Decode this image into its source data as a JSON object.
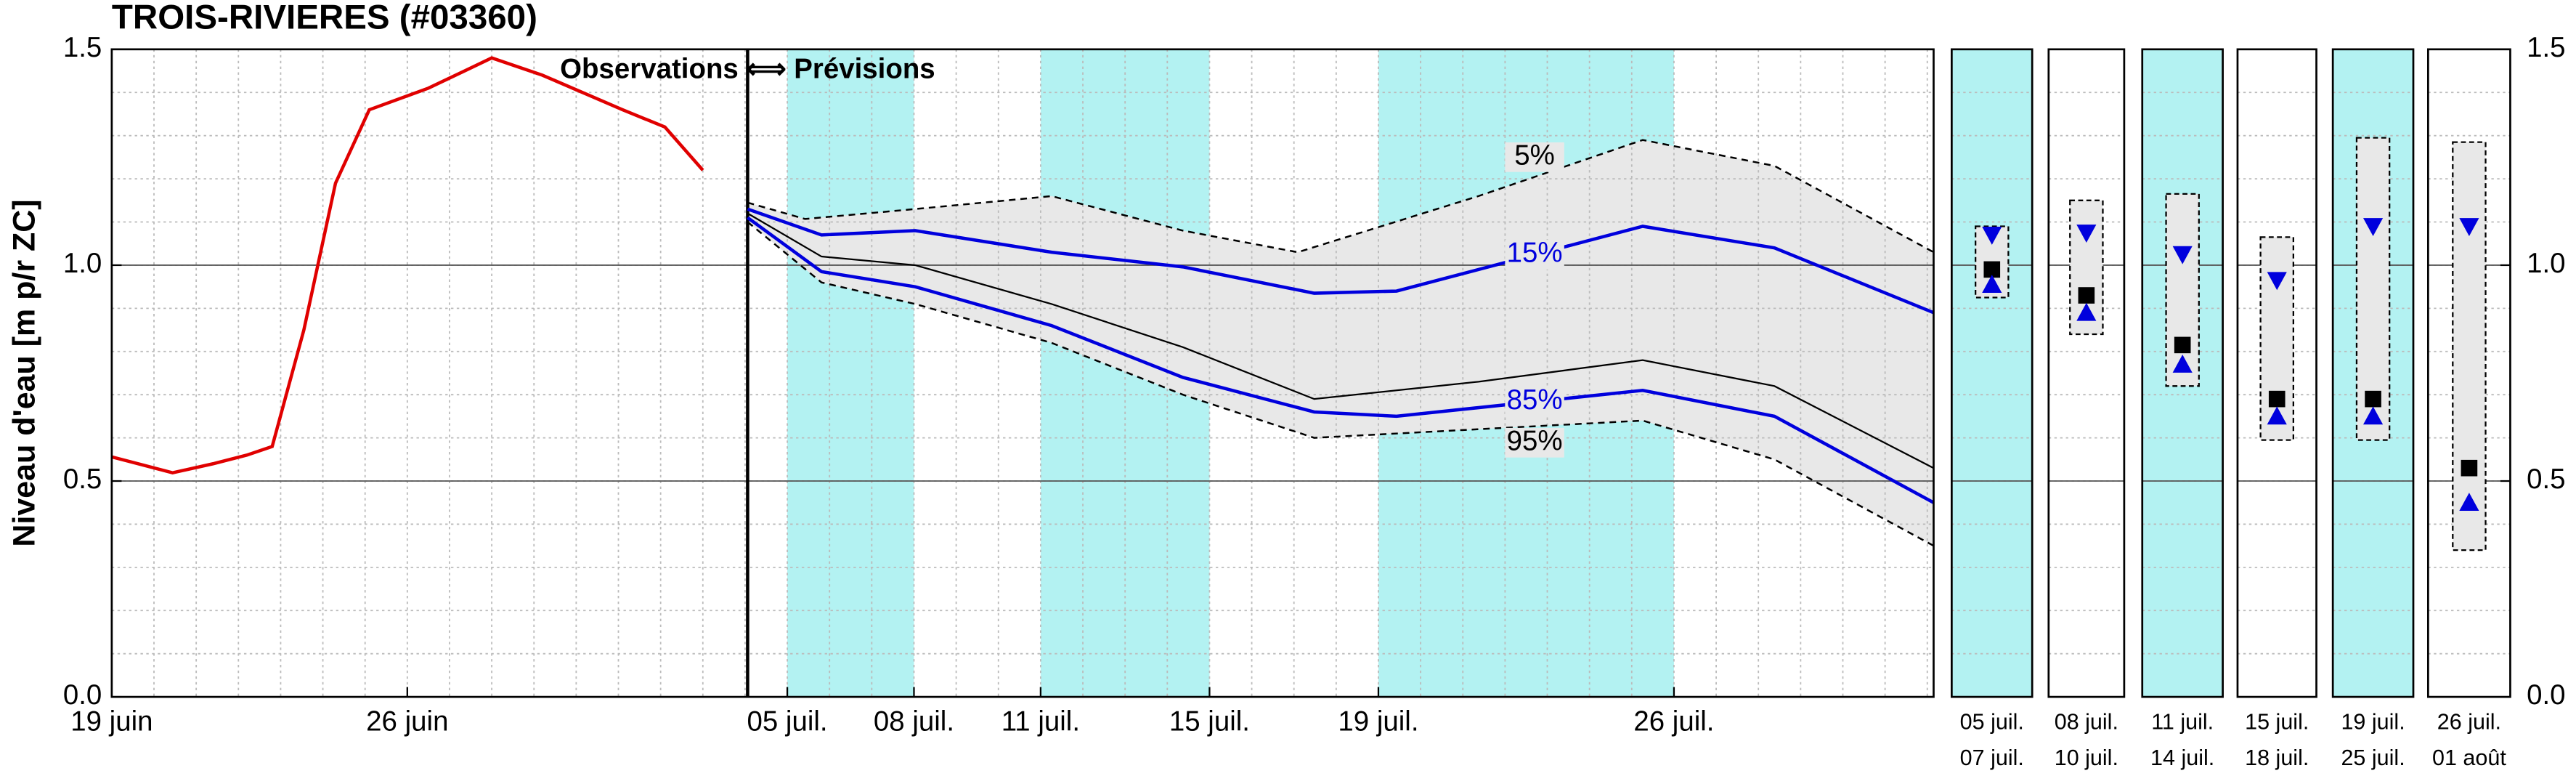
{
  "chart_data": [
    {
      "type": "line",
      "title": "TROIS-RIVIERES (#03360)",
      "ylabel": "Niveau d'eau [m p/r ZC]",
      "annotation": "Observations ⟺ Prévisions",
      "xlim": [
        0,
        43.15
      ],
      "xticks": [
        {
          "value": 0,
          "label": "19 juin"
        },
        {
          "value": 7,
          "label": "26 juin"
        },
        {
          "value": 16,
          "label": "05 juil."
        },
        {
          "value": 19,
          "label": "08 juil."
        },
        {
          "value": 22,
          "label": "11 juil."
        },
        {
          "value": 26,
          "label": "15 juil."
        },
        {
          "value": 30,
          "label": "19 juil."
        },
        {
          "value": 37,
          "label": "26 juil."
        }
      ],
      "ylim": [
        0,
        1.5
      ],
      "yticks": [
        {
          "value": 0,
          "label": "0.0"
        },
        0.5,
        {
          "value": 1,
          "label": "1.0"
        },
        1.5
      ],
      "grid": true,
      "minor_xstep": 1,
      "minor_ystep": 0.1,
      "forecast_start": 15.06,
      "shaded_periods": [
        [
          16,
          19
        ],
        [
          22,
          26
        ],
        [
          30,
          37
        ]
      ],
      "shade_color": "#b3f2f2",
      "band_color": "#e8e8e8",
      "series": [
        {
          "color": "#e00000",
          "x": [
            0,
            1.44,
            2.4,
            3.2,
            3.8,
            4.55,
            5.3,
            6.1,
            7.5,
            9.0,
            10.2,
            12.1,
            13.1,
            14.0
          ],
          "values": [
            0.556,
            0.519,
            0.54,
            0.56,
            0.58,
            0.85,
            1.19,
            1.36,
            1.41,
            1.48,
            1.44,
            1.36,
            1.32,
            1.22
          ]
        },
        {
          "name": "5%",
          "color": "#000000",
          "dashed": true,
          "x": [
            15.06,
            16.42,
            19.03,
            22.26,
            25.37,
            28.09,
            32.37,
            36.26,
            39.38,
            43.15
          ],
          "values": [
            1.145,
            1.107,
            1.13,
            1.16,
            1.08,
            1.03,
            1.16,
            1.29,
            1.23,
            1.03
          ]
        },
        {
          "name": "15%",
          "color": "#0000dd",
          "x": [
            15.06,
            16.81,
            19.03,
            22.26,
            25.37,
            28.48,
            30.43,
            36.26,
            39.38,
            43.15
          ],
          "values": [
            1.13,
            1.07,
            1.08,
            1.03,
            0.996,
            0.935,
            0.94,
            1.09,
            1.04,
            0.89
          ]
        },
        {
          "color": "#000000",
          "x": [
            15.06,
            16.81,
            19.03,
            22.26,
            25.37,
            28.48,
            32.37,
            36.26,
            39.38,
            43.15
          ],
          "values": [
            1.12,
            1.02,
            1.0,
            0.91,
            0.81,
            0.69,
            0.73,
            0.78,
            0.72,
            0.53
          ]
        },
        {
          "name": "85%",
          "color": "#0000dd",
          "x": [
            15.06,
            16.81,
            19.03,
            22.26,
            25.37,
            28.48,
            30.43,
            36.26,
            39.38,
            43.15
          ],
          "values": [
            1.11,
            0.985,
            0.95,
            0.86,
            0.74,
            0.66,
            0.65,
            0.71,
            0.65,
            0.45
          ]
        },
        {
          "name": "95%",
          "color": "#000000",
          "dashed": true,
          "x": [
            15.06,
            16.81,
            19.03,
            22.26,
            25.37,
            28.48,
            36.26,
            39.38,
            43.15
          ],
          "values": [
            1.1,
            0.96,
            0.91,
            0.82,
            0.7,
            0.6,
            0.64,
            0.55,
            0.35
          ]
        }
      ]
    },
    {
      "type": "range",
      "categories": [
        [
          "05 juil.",
          "07 juil."
        ],
        [
          "08 juil.",
          "10 juil."
        ],
        [
          "11 juil.",
          "14 juil."
        ],
        [
          "15 juil.",
          "18 juil."
        ],
        [
          "19 juil.",
          "25 juil."
        ],
        [
          "26 juil.",
          "01 août"
        ]
      ],
      "shaded": [
        true,
        false,
        true,
        false,
        true,
        false
      ],
      "ylim": [
        0,
        1.5
      ],
      "yticks": [
        {
          "value": 0,
          "label": "0.0"
        },
        0.5,
        {
          "value": 1,
          "label": "1.0"
        },
        1.5
      ],
      "series": [
        {
          "marker": "box-top",
          "color": "#000000",
          "values": [
            1.09,
            1.15,
            1.165,
            1.065,
            1.295,
            1.285
          ]
        },
        {
          "marker": "triangle-down",
          "color": "#0000dd",
          "values": [
            1.07,
            1.075,
            1.025,
            0.965,
            1.09,
            1.09
          ]
        },
        {
          "marker": "square",
          "color": "#000000",
          "values": [
            0.99,
            0.93,
            0.815,
            0.69,
            0.69,
            0.53
          ]
        },
        {
          "marker": "triangle-up",
          "color": "#0000dd",
          "values": [
            0.955,
            0.89,
            0.77,
            0.65,
            0.65,
            0.45
          ]
        },
        {
          "marker": "box-bottom",
          "color": "#000000",
          "values": [
            0.925,
            0.84,
            0.72,
            0.595,
            0.595,
            0.34
          ]
        }
      ]
    }
  ]
}
